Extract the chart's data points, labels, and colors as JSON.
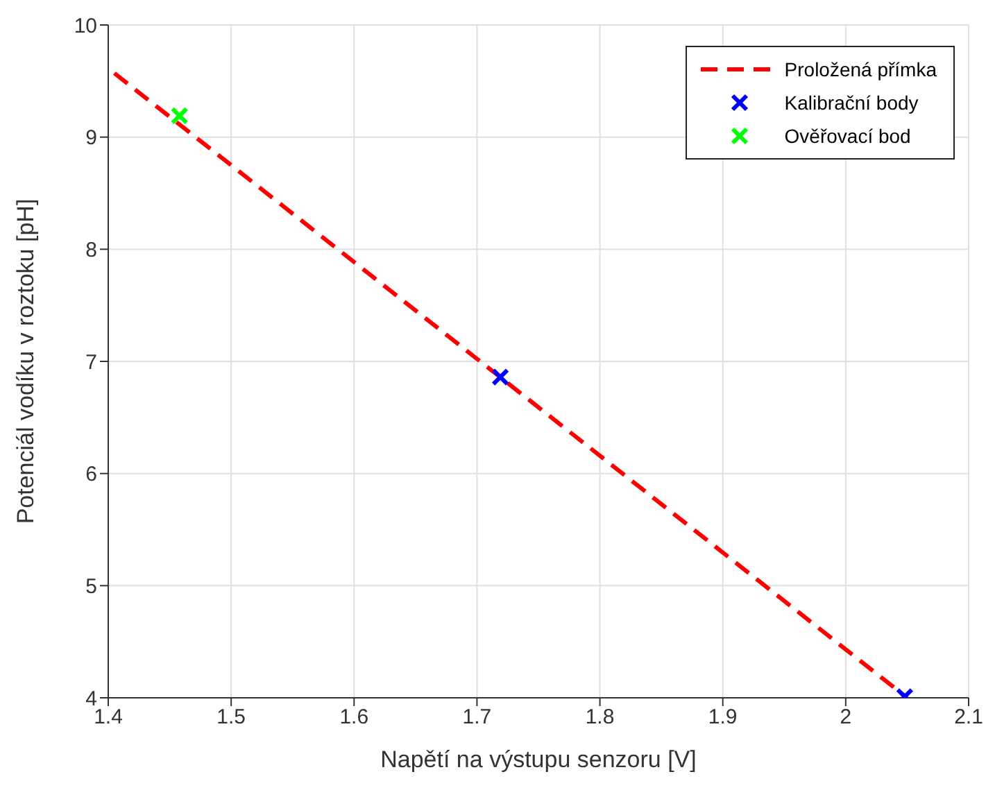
{
  "chart_data": {
    "type": "line",
    "xlabel": "Napětí na výstupu senzoru [V]",
    "ylabel": "Potenciál vodíku v roztoku [pH]",
    "series": [
      {
        "name": "Proložená přímka",
        "color": "#ff0000",
        "line_style": "dashed",
        "marker": "none",
        "x": [
          1.405,
          2.05
        ],
        "values": [
          9.57,
          4.0
        ]
      },
      {
        "name": "Kalibrační body",
        "type": "scatter",
        "color": "#0000ff",
        "marker": "cross",
        "x": [
          1.719,
          2.048
        ],
        "values": [
          6.86,
          4.01
        ]
      },
      {
        "name": "Ověřovací bod",
        "type": "scatter",
        "color": "#00ff00",
        "marker": "cross",
        "x": [
          1.458
        ],
        "values": [
          9.19
        ]
      }
    ],
    "xlim": [
      1.4,
      2.1
    ],
    "xticks": [
      1.4,
      1.5,
      1.6,
      1.7,
      1.8,
      1.9,
      2,
      2.1
    ],
    "ylim": [
      4,
      10
    ],
    "yticks": [
      4,
      5,
      6,
      7,
      8,
      9,
      10
    ],
    "grid": true,
    "legend": "top right"
  }
}
